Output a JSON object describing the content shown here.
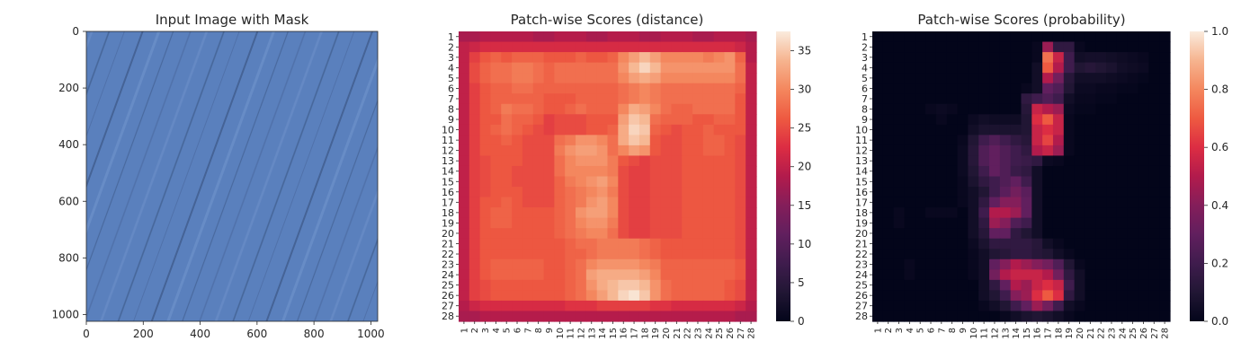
{
  "chart_data": [
    {
      "type": "image",
      "title": "Input Image with Mask",
      "xlim": [
        0,
        1024
      ],
      "ylim": [
        1024,
        0
      ],
      "xticks": [
        0,
        200,
        400,
        600,
        800,
        1000
      ],
      "yticks": [
        0,
        200,
        400,
        600,
        800,
        1000
      ],
      "image_color": "#5a80bd"
    },
    {
      "type": "heatmap",
      "title": "Patch-wise Scores (distance)",
      "rows": 28,
      "cols": 28,
      "row_labels": [
        "1",
        "2",
        "3",
        "4",
        "5",
        "6",
        "7",
        "8",
        "9",
        "10",
        "11",
        "12",
        "13",
        "14",
        "15",
        "16",
        "17",
        "18",
        "19",
        "20",
        "21",
        "22",
        "23",
        "24",
        "25",
        "26",
        "27",
        "28"
      ],
      "col_labels": [
        "1",
        "2",
        "3",
        "4",
        "5",
        "6",
        "7",
        "8",
        "9",
        "10",
        "11",
        "12",
        "13",
        "14",
        "15",
        "16",
        "17",
        "18",
        "19",
        "20",
        "21",
        "22",
        "23",
        "24",
        "25",
        "26",
        "27",
        "28"
      ],
      "colorbar": {
        "min": 0,
        "max": 37.5,
        "ticks": [
          0,
          5,
          10,
          15,
          20,
          25,
          30,
          35
        ]
      },
      "colormap": "rocket",
      "values_rows": [
        "18 18 19 19 19 19 19 18 18 19 19 19 18 18 19 19 19 18 18 19 19 19 18 18 19 19 19 18",
        "20 21 22 22 22 22 22 22 22 22 22 22 22 22 22 22 22 22 22 22 22 22 22 22 22 22 21 19",
        "20 24 26 27 26 27 27 27 26 26 26 27 26 26 27 30 32 34 32 30 30 30 30 29 30 31 27 19",
        "20 25 27 28 28 29 29 28 27 28 28 28 28 28 28 31 34 36 34 31 31 31 31 31 31 31 28 20",
        "20 25 27 28 28 29 29 28 27 28 28 28 28 28 28 30 32 33 32 30 30 30 30 30 30 30 28 20",
        "20 24 26 27 27 28 28 27 27 27 27 27 27 27 27 28 29 30 29 28 28 28 28 28 28 28 27 20",
        "20 24 26 27 27 27 27 27 26 26 26 27 27 27 27 28 29 30 29 28 28 28 28 28 28 28 26 20",
        "20 24 26 27 29 28 28 27 26 26 27 28 27 27 27 30 33 32 30 28 27 27 28 28 28 28 26 20",
        "20 24 26 26 28 27 27 26 24 25 25 25 26 26 26 32 35 34 28 27 27 27 26 26 27 27 26 20",
        "20 24 26 27 28 27 26 25 24 25 25 25 26 26 27 33 36 35 27 26 25 26 26 27 26 26 26 20",
        "20 24 26 26 27 26 25 25 25 28 29 31 31 30 28 33 35 34 26 25 25 26 26 27 27 26 25 20",
        "20 24 26 26 26 26 25 25 25 29 31 32 32 31 28 30 32 31 26 25 25 26 26 27 27 26 25 20",
        "20 24 25 26 26 26 25 25 25 28 30 31 31 31 29 26 25 24 25 25 25 26 26 26 26 26 25 20",
        "20 24 25 26 26 25 25 25 25 28 30 30 30 30 29 25 24 24 25 25 25 26 26 26 26 26 25 20",
        "20 24 25 26 26 25 25 25 25 27 29 30 31 32 30 25 24 24 25 25 25 26 26 26 26 26 25 20",
        "20 24 25 26 26 26 25 25 25 27 28 29 30 31 29 25 24 24 25 25 25 26 26 26 26 26 25 20",
        "20 24 26 26 27 26 25 25 25 27 28 29 31 32 30 25 24 24 25 25 25 26 26 26 26 26 25 20",
        "20 24 26 27 27 26 26 26 26 27 28 31 32 32 30 25 24 24 25 25 25 26 26 26 26 26 25 20",
        "20 24 26 27 27 26 26 26 26 27 28 30 31 31 29 25 24 24 25 25 25 26 26 26 26 26 25 20",
        "20 24 26 26 26 26 26 26 26 27 28 29 30 30 28 25 24 24 25 25 25 26 26 26 26 26 25 20",
        "20 24 26 26 26 26 26 26 26 26 27 28 28 29 29 29 29 28 27 26 26 26 26 26 26 26 25 20",
        "20 24 26 26 26 26 26 26 26 26 27 27 28 29 29 29 29 28 27 26 26 26 26 26 26 26 25 20",
        "20 24 26 27 27 27 27 27 26 26 27 28 30 31 31 31 31 30 29 27 27 27 27 27 27 27 26 20",
        "20 24 26 27 27 27 27 27 26 26 27 28 32 33 33 33 33 32 30 27 27 27 27 27 27 27 26 20",
        "20 24 25 26 26 26 26 26 26 26 27 28 31 33 34 35 35 34 31 28 27 27 27 27 27 26 25 20",
        "20 24 25 26 26 26 26 26 26 26 27 28 30 32 34 36 37 35 31 28 27 27 27 27 27 26 25 20",
        "19 21 22 22 22 22 22 22 22 22 23 23 23 24 24 24 24 24 23 23 22 22 22 22 22 22 21 19",
        "18 18 19 19 19 19 19 19 19 19 19 19 19 19 19 19 19 19 19 19 19 19 19 19 19 19 18 18"
      ]
    },
    {
      "type": "heatmap",
      "title": "Patch-wise Scores (probability)",
      "rows": 28,
      "cols": 28,
      "row_labels": [
        "1",
        "2",
        "3",
        "4",
        "5",
        "6",
        "7",
        "8",
        "9",
        "10",
        "11",
        "12",
        "13",
        "14",
        "15",
        "16",
        "17",
        "18",
        "19",
        "20",
        "21",
        "22",
        "23",
        "24",
        "25",
        "26",
        "27",
        "28"
      ],
      "col_labels": [
        "1",
        "2",
        "3",
        "4",
        "5",
        "6",
        "7",
        "8",
        "9",
        "10",
        "11",
        "12",
        "13",
        "14",
        "15",
        "16",
        "17",
        "18",
        "19",
        "20",
        "21",
        "22",
        "23",
        "24",
        "25",
        "26",
        "27",
        "28"
      ],
      "colorbar": {
        "min": 0,
        "max": 1,
        "ticks": [
          0.0,
          0.2,
          0.4,
          0.6,
          0.8,
          1.0
        ]
      },
      "colorbar_tick_labels": [
        "0.0",
        "0.2",
        "0.4",
        "0.6",
        "0.8",
        "1.0"
      ],
      "colormap": "rocket",
      "values_rows": [
        "0 0 0 0 0 0 0 0 0 0 0 0 0 0 0 0 0 0 0 0 0 0 0 0 0 0 0 0",
        "0 0 0 0 0 0 0 0 0 0 0 0 0 0 0 0.02 0.45 0.15 0.15 0.02 0 0 0 0 0 0 0 0",
        "0 0 0 0 0 0 0 0 0 0 0 0 0 0 0 0.02 0.75 0.55 0.2 0.05 0.06 0.06 0.05 0.04 0.03 0.02 0 0",
        "0 0 0 0 0 0 0 0 0 0 0 0 0 0 0 0.05 0.7 0.5 0.2 0.1 0.12 0.1 0.08 0.05 0.04 0.03 0 0",
        "0 0 0 0 0 0 0 0 0 0 0 0 0 0 0 0.05 0.5 0.35 0.12 0.05 0.05 0.05 0.04 0.03 0.02 0.01 0 0",
        "0 0 0 0 0 0 0 0 0 0 0 0 0 0 0.02 0.05 0.3 0.25 0.1 0.03 0.03 0.02 0.02 0.01 0.01 0 0 0",
        "0 0 0 0 0 0 0 0 0 0 0 0 0 0 0.15 0.2 0.25 0.2 0.05 0.02 0.02 0.01 0.01 0 0 0 0 0",
        "0 0 0 0 0 0.02 0.03 0.02 0 0 0 0 0 0 0.12 0.55 0.5 0.45 0.03 0.01 0.01 0 0 0 0 0 0 0",
        "0 0 0 0 0 0 0.02 0 0 0.03 0.05 0.04 0.04 0.04 0.1 0.6 0.7 0.55 0.02 0 0 0 0 0 0 0 0 0",
        "0 0 0 0 0 0 0 0 0 0.05 0.08 0.08 0.08 0.08 0.1 0.55 0.6 0.55 0.02 0 0 0 0 0 0 0 0 0",
        "0 0 0 0 0 0 0 0 0.02 0.1 0.2 0.25 0.2 0.15 0.12 0.55 0.65 0.5 0.02 0 0 0 0 0 0 0 0 0",
        "0 0 0 0 0 0 0 0 0.03 0.12 0.25 0.3 0.25 0.2 0.15 0.5 0.55 0.45 0.02 0 0 0 0 0 0 0 0 0",
        "0 0 0 0 0 0 0 0 0.03 0.12 0.25 0.3 0.25 0.2 0.18 0.15 0.03 0.02 0 0 0 0 0 0 0 0 0 0",
        "0 0 0 0 0 0 0 0 0.03 0.1 0.2 0.3 0.25 0.18 0.15 0.05 0 0 0 0 0 0 0 0 0 0 0 0",
        "0 0 0 0 0 0 0 0 0.02 0.08 0.15 0.2 0.25 0.3 0.2 0.05 0 0 0 0 0 0 0 0 0 0 0 0",
        "0 0 0 0 0 0 0 0 0.02 0.05 0.1 0.2 0.28 0.35 0.28 0.05 0 0 0 0 0 0 0 0 0 0 0 0",
        "0 0 0 0 0 0 0 0 0.02 0.05 0.15 0.3 0.4 0.4 0.3 0.05 0 0 0 0 0 0 0 0 0 0 0 0",
        "0 0 0.02 0 0 0.02 0.02 0.02 0 0.05 0.2 0.5 0.5 0.45 0.3 0.05 0 0 0 0 0 0 0 0 0 0 0 0",
        "0 0 0.02 0 0 0 0 0 0 0.05 0.15 0.45 0.4 0.25 0.2 0.05 0 0 0 0 0 0 0 0 0 0 0 0",
        "0 0 0 0 0 0 0 0 0 0.05 0.12 0.3 0.3 0.15 0.1 0.05 0 0 0 0 0 0 0 0 0 0 0 0",
        "0 0 0 0 0 0 0 0 0 0.03 0.08 0.15 0.15 0.15 0.15 0.12 0.05 0.02 0 0 0 0 0 0 0 0 0 0",
        "0 0 0 0 0 0 0 0 0 0.02 0.05 0.1 0.12 0.15 0.15 0.12 0.1 0.05 0.02 0 0 0 0 0 0 0 0 0",
        "0 0 0 0.02 0 0 0 0 0 0.02 0.05 0.3 0.4 0.5 0.45 0.4 0.35 0.25 0.1 0.02 0 0 0 0 0 0 0 0",
        "0 0 0 0.02 0 0 0 0 0 0.02 0.05 0.35 0.5 0.55 0.55 0.55 0.5 0.35 0.15 0.05 0 0 0 0 0 0 0 0",
        "0 0 0 0 0 0 0 0 0 0 0.05 0.15 0.3 0.5 0.45 0.55 0.6 0.55 0.2 0.05 0 0 0 0 0 0 0 0",
        "0 0 0 0 0 0 0 0 0 0 0.05 0.1 0.2 0.4 0.45 0.6 0.7 0.6 0.15 0.05 0 0 0 0 0 0 0 0",
        "0 0 0 0 0 0 0 0 0 0 0.02 0.05 0.1 0.2 0.3 0.45 0.35 0.2 0.05 0.02 0 0 0 0 0 0 0 0",
        "0 0 0 0 0 0 0 0 0 0 0 0 0.02 0.05 0.08 0.1 0.08 0.05 0.02 0 0 0 0 0 0 0 0 0"
      ]
    }
  ]
}
